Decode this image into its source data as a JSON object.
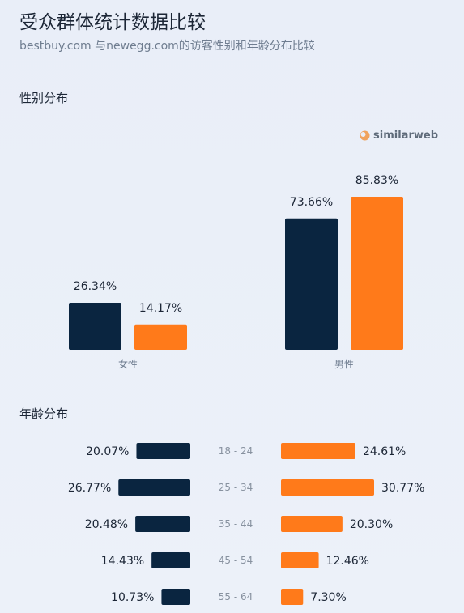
{
  "header": {
    "title": "受众群体统计数据比较",
    "subtitle": "bestbuy.com 与newegg.com的访客性别和年龄分布比较"
  },
  "brand": {
    "name": "similarweb"
  },
  "colors": {
    "bestbuy": "#0a2540",
    "newegg": "#ff7a1a"
  },
  "chart_data": [
    {
      "type": "bar",
      "title": "性别分布",
      "categories": [
        "女性",
        "男性"
      ],
      "series": [
        {
          "values": [
            26.34,
            73.66
          ],
          "labels": [
            "26.34%",
            "73.66%"
          ]
        },
        {
          "values": [
            14.17,
            85.83
          ],
          "labels": [
            "14.17%",
            "85.83%"
          ]
        }
      ],
      "ylim": [
        0,
        100
      ]
    },
    {
      "type": "bar",
      "title": "年龄分布",
      "categories": [
        "18 - 24",
        "25 - 34",
        "35 - 44",
        "45 - 54",
        "55 - 64"
      ],
      "series": [
        {
          "values": [
            20.07,
            26.77,
            20.48,
            14.43,
            10.73
          ],
          "labels": [
            "20.07%",
            "26.77%",
            "20.48%",
            "14.43%",
            "10.73%"
          ]
        },
        {
          "values": [
            24.61,
            30.77,
            20.3,
            12.46,
            7.3
          ],
          "labels": [
            "24.61%",
            "30.77%",
            "20.30%",
            "12.46%",
            "7.30%"
          ]
        }
      ]
    }
  ]
}
